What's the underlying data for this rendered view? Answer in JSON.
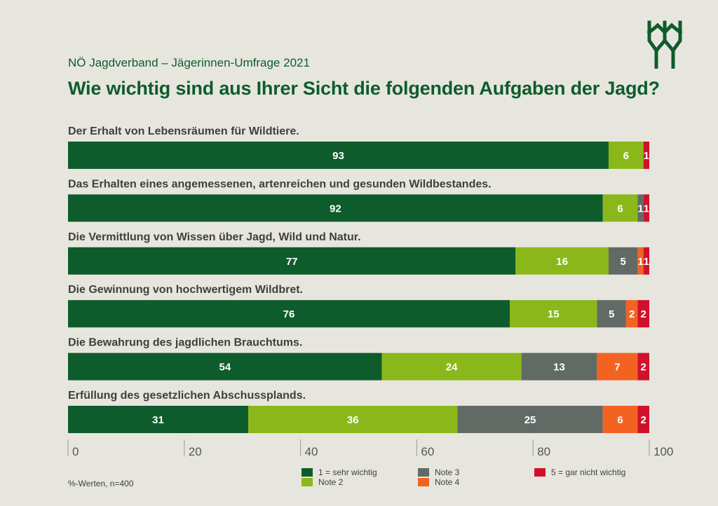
{
  "header": {
    "subtitle": "NÖ Jagdverband – Jägerinnen-Umfrage 2021",
    "title": "Wie wichtig sind aus Ihrer Sicht die folgenden Aufgaben der Jagd?"
  },
  "footnote": "%-Werten, n=400",
  "logo": {
    "icon": "deer-antler-logo-icon",
    "color": "#0e5c2c"
  },
  "chart_data": {
    "type": "bar",
    "orientation": "horizontal",
    "stacked": true,
    "title": "Wie wichtig sind aus Ihrer Sicht die folgenden Aufgaben der Jagd?",
    "xlim": [
      0,
      100
    ],
    "xticks": [
      0,
      20,
      40,
      60,
      80,
      100
    ],
    "categories": [
      "Der Erhalt von Lebensräumen für Wildtiere.",
      "Das Erhalten eines angemessenen, artenreichen und gesunden Wildbestandes.",
      "Die Vermittlung von Wissen über Jagd, Wild und Natur.",
      "Die Gewinnung von hochwertigem Wildbret.",
      "Die Bewahrung des jagdlichen Brauchtums.",
      "Erfüllung des gesetzlichen Abschussplands."
    ],
    "series": [
      {
        "name": "1 = sehr wichtig",
        "color": "#0e5c2c",
        "values": [
          93,
          92,
          77,
          76,
          54,
          31
        ]
      },
      {
        "name": "Note 2",
        "color": "#8ab81a",
        "values": [
          6,
          6,
          16,
          15,
          24,
          36
        ]
      },
      {
        "name": "Note 3",
        "color": "#626a66",
        "values": [
          0,
          1,
          5,
          5,
          13,
          25
        ]
      },
      {
        "name": "Note 4",
        "color": "#f26322",
        "values": [
          0,
          0,
          1,
          2,
          7,
          6
        ]
      },
      {
        "name": "5 = gar nicht wichtig",
        "color": "#d0112b",
        "values": [
          1,
          1,
          1,
          2,
          2,
          2
        ]
      }
    ],
    "grid": false,
    "legend_position": "bottom"
  }
}
